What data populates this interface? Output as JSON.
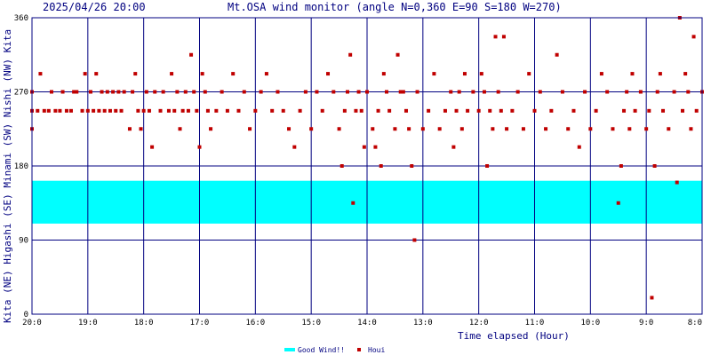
{
  "header": {
    "timestamp": "2025/04/26 20:00",
    "title": "Mt.OSA wind monitor (angle N=0,360 E=90 S=180 W=270)"
  },
  "chart_data": {
    "type": "scatter",
    "ylabel": "Kita (NE) Higashi (SE) Minami (SW) Nishi (NW) Kita",
    "xlabel": "Time elapsed (Hour)",
    "ylim": [
      0,
      360
    ],
    "y_ticks": [
      "0",
      "90",
      "180",
      "270",
      "360"
    ],
    "x_ticks": [
      "20:0",
      "19:0",
      "18:0",
      "17:0",
      "16:0",
      "15:0",
      "14:0",
      "13:0",
      "12:0",
      "11:0",
      "10:0",
      "9:0",
      "8:0"
    ],
    "x_start_hours": 0,
    "x_end_hours": 12,
    "good_wind_band": {
      "from": 110,
      "to": 162
    },
    "legend": [
      {
        "label": "Good Wind!!",
        "color": "#00ffff",
        "kind": "band"
      },
      {
        "label": "Houi",
        "color": "#c00000",
        "kind": "point"
      }
    ],
    "colors": {
      "grid": "#000080",
      "band": "#00ffff",
      "point": "#c00000",
      "text": "#000080"
    },
    "series": [
      {
        "name": "Houi",
        "points": [
          [
            0.0,
            247
          ],
          [
            0.0,
            270
          ],
          [
            0.0,
            225
          ],
          [
            0.1,
            247
          ],
          [
            0.15,
            292
          ],
          [
            0.22,
            247
          ],
          [
            0.3,
            247
          ],
          [
            0.35,
            270
          ],
          [
            0.42,
            247
          ],
          [
            0.5,
            247
          ],
          [
            0.55,
            270
          ],
          [
            0.62,
            247
          ],
          [
            0.7,
            247
          ],
          [
            0.75,
            270
          ],
          [
            0.8,
            270
          ],
          [
            0.9,
            247
          ],
          [
            0.95,
            292
          ],
          [
            1.0,
            247
          ],
          [
            1.05,
            270
          ],
          [
            1.1,
            247
          ],
          [
            1.15,
            292
          ],
          [
            1.2,
            247
          ],
          [
            1.25,
            270
          ],
          [
            1.3,
            247
          ],
          [
            1.35,
            270
          ],
          [
            1.4,
            247
          ],
          [
            1.45,
            270
          ],
          [
            1.5,
            247
          ],
          [
            1.55,
            270
          ],
          [
            1.6,
            247
          ],
          [
            1.65,
            270
          ],
          [
            1.75,
            225
          ],
          [
            1.8,
            270
          ],
          [
            1.85,
            292
          ],
          [
            1.9,
            247
          ],
          [
            1.95,
            225
          ],
          [
            2.0,
            247
          ],
          [
            2.05,
            270
          ],
          [
            2.1,
            247
          ],
          [
            2.15,
            203
          ],
          [
            2.2,
            270
          ],
          [
            2.3,
            247
          ],
          [
            2.35,
            270
          ],
          [
            2.45,
            247
          ],
          [
            2.5,
            292
          ],
          [
            2.55,
            247
          ],
          [
            2.6,
            270
          ],
          [
            2.65,
            225
          ],
          [
            2.7,
            247
          ],
          [
            2.75,
            270
          ],
          [
            2.8,
            247
          ],
          [
            2.85,
            315
          ],
          [
            2.9,
            270
          ],
          [
            2.95,
            247
          ],
          [
            3.0,
            203
          ],
          [
            3.05,
            292
          ],
          [
            3.1,
            270
          ],
          [
            3.15,
            247
          ],
          [
            3.2,
            225
          ],
          [
            3.3,
            247
          ],
          [
            3.4,
            270
          ],
          [
            3.5,
            247
          ],
          [
            3.6,
            292
          ],
          [
            3.7,
            247
          ],
          [
            3.8,
            270
          ],
          [
            3.9,
            225
          ],
          [
            4.0,
            247
          ],
          [
            4.1,
            270
          ],
          [
            4.2,
            292
          ],
          [
            4.3,
            247
          ],
          [
            4.4,
            270
          ],
          [
            4.5,
            247
          ],
          [
            4.6,
            225
          ],
          [
            4.7,
            203
          ],
          [
            4.8,
            247
          ],
          [
            4.9,
            270
          ],
          [
            5.0,
            225
          ],
          [
            5.1,
            270
          ],
          [
            5.2,
            247
          ],
          [
            5.3,
            292
          ],
          [
            5.4,
            270
          ],
          [
            5.5,
            225
          ],
          [
            5.55,
            180
          ],
          [
            5.6,
            247
          ],
          [
            5.65,
            270
          ],
          [
            5.7,
            315
          ],
          [
            5.75,
            135
          ],
          [
            5.8,
            247
          ],
          [
            5.85,
            270
          ],
          [
            5.9,
            247
          ],
          [
            5.95,
            203
          ],
          [
            6.0,
            270
          ],
          [
            6.1,
            225
          ],
          [
            6.15,
            203
          ],
          [
            6.2,
            247
          ],
          [
            6.25,
            180
          ],
          [
            6.3,
            292
          ],
          [
            6.35,
            270
          ],
          [
            6.4,
            247
          ],
          [
            6.5,
            225
          ],
          [
            6.55,
            315
          ],
          [
            6.6,
            270
          ],
          [
            6.65,
            270
          ],
          [
            6.7,
            247
          ],
          [
            6.75,
            225
          ],
          [
            6.8,
            180
          ],
          [
            6.85,
            90
          ],
          [
            6.9,
            270
          ],
          [
            7.0,
            225
          ],
          [
            7.1,
            247
          ],
          [
            7.2,
            292
          ],
          [
            7.3,
            225
          ],
          [
            7.4,
            247
          ],
          [
            7.5,
            270
          ],
          [
            7.55,
            203
          ],
          [
            7.6,
            247
          ],
          [
            7.65,
            270
          ],
          [
            7.7,
            225
          ],
          [
            7.75,
            292
          ],
          [
            7.8,
            247
          ],
          [
            7.9,
            270
          ],
          [
            8.0,
            247
          ],
          [
            8.05,
            292
          ],
          [
            8.1,
            270
          ],
          [
            8.15,
            180
          ],
          [
            8.2,
            247
          ],
          [
            8.25,
            225
          ],
          [
            8.3,
            337
          ],
          [
            8.35,
            270
          ],
          [
            8.4,
            247
          ],
          [
            8.45,
            337
          ],
          [
            8.5,
            225
          ],
          [
            8.6,
            247
          ],
          [
            8.7,
            270
          ],
          [
            8.8,
            225
          ],
          [
            8.9,
            292
          ],
          [
            9.0,
            247
          ],
          [
            9.1,
            270
          ],
          [
            9.2,
            225
          ],
          [
            9.3,
            247
          ],
          [
            9.4,
            315
          ],
          [
            9.5,
            270
          ],
          [
            9.6,
            225
          ],
          [
            9.7,
            247
          ],
          [
            9.8,
            203
          ],
          [
            9.9,
            270
          ],
          [
            10.0,
            225
          ],
          [
            10.1,
            247
          ],
          [
            10.2,
            292
          ],
          [
            10.3,
            270
          ],
          [
            10.4,
            225
          ],
          [
            10.5,
            135
          ],
          [
            10.55,
            180
          ],
          [
            10.6,
            247
          ],
          [
            10.65,
            270
          ],
          [
            10.7,
            225
          ],
          [
            10.75,
            292
          ],
          [
            10.8,
            247
          ],
          [
            10.9,
            270
          ],
          [
            11.0,
            225
          ],
          [
            11.05,
            247
          ],
          [
            11.1,
            20
          ],
          [
            11.15,
            180
          ],
          [
            11.2,
            270
          ],
          [
            11.25,
            292
          ],
          [
            11.3,
            247
          ],
          [
            11.4,
            225
          ],
          [
            11.5,
            270
          ],
          [
            11.55,
            160
          ],
          [
            11.6,
            360
          ],
          [
            11.65,
            247
          ],
          [
            11.7,
            292
          ],
          [
            11.75,
            270
          ],
          [
            11.8,
            225
          ],
          [
            11.85,
            337
          ],
          [
            11.9,
            247
          ],
          [
            12.0,
            270
          ]
        ]
      }
    ]
  }
}
